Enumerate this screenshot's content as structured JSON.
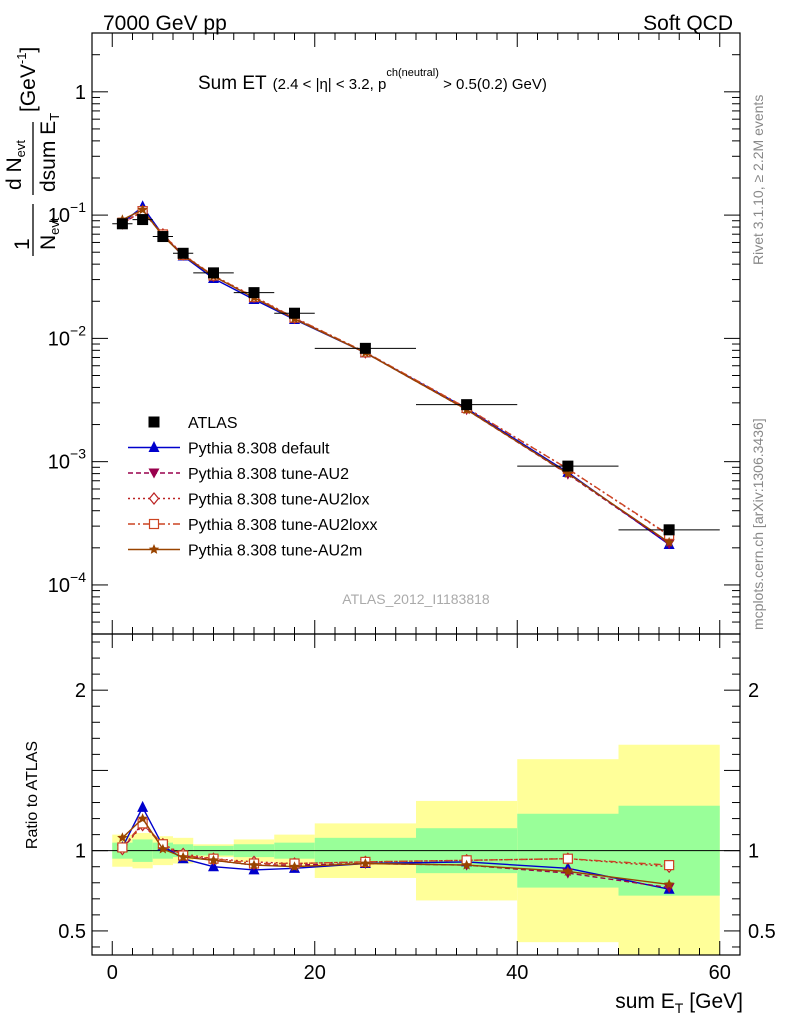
{
  "header": {
    "left": "7000 GeV pp",
    "right": "Soft QCD"
  },
  "side_labels": {
    "top": "Rivet 3.1.10, ≥ 2.2M events",
    "bottom": "mcplots.cern.ch [arXiv:1306.3436]"
  },
  "plot_title": {
    "main": "Sum ET",
    "cond_a": "(2.4 < |η| < 3.2, p",
    "cond_sup": "ch(neutral)",
    "cond_b": " > 0.5(0.2) GeV)"
  },
  "y_label": {
    "one": "1",
    "n": "N",
    "n_sub": "evt",
    "dn": "d N",
    "dn_sub": "evt",
    "dsum": "dsum E",
    "dsum_sub": "T",
    "unit": "[GeV",
    "unit_sup": "-1",
    "unit_close": "]"
  },
  "ratio_ylabel": "Ratio to ATLAS",
  "x_label": {
    "text": "sum E",
    "sub": "T",
    "unit": "[GeV]"
  },
  "watermark": "ATLAS_2012_I1183818",
  "chart_data": {
    "type": "scatter",
    "x_range": [
      -2,
      62
    ],
    "x_ticks": [
      0,
      20,
      40,
      60
    ],
    "main_panel": {
      "yscale": "log",
      "ylim": [
        4e-05,
        3
      ],
      "y_ticks": [
        {
          "value": 1,
          "base": "1",
          "exp": ""
        },
        {
          "value": 0.1,
          "base": "10",
          "exp": "−1"
        },
        {
          "value": 0.01,
          "base": "10",
          "exp": "−2"
        },
        {
          "value": 0.001,
          "base": "10",
          "exp": "−3"
        },
        {
          "value": 0.0001,
          "base": "10",
          "exp": "−4"
        }
      ]
    },
    "ratio_panel": {
      "ylim": [
        0.35,
        2.35
      ],
      "y_ticks": [
        {
          "value": 2,
          "label": "2"
        },
        {
          "value": 1,
          "label": "1"
        },
        {
          "value": 0.5,
          "label": "0.5"
        }
      ]
    },
    "bins": [
      {
        "lo": 0,
        "hi": 2,
        "x": 1,
        "data": 0.085,
        "stat": 0.05,
        "tot": 0.1
      },
      {
        "lo": 2,
        "hi": 4,
        "x": 3,
        "data": 0.092,
        "stat": 0.07,
        "tot": 0.11
      },
      {
        "lo": 4,
        "hi": 6,
        "x": 5,
        "data": 0.067,
        "stat": 0.05,
        "tot": 0.09
      },
      {
        "lo": 6,
        "hi": 8,
        "x": 7,
        "data": 0.049,
        "stat": 0.04,
        "tot": 0.08
      },
      {
        "lo": 8,
        "hi": 12,
        "x": 10,
        "data": 0.034,
        "stat": 0.03,
        "tot": 0.04
      },
      {
        "lo": 12,
        "hi": 16,
        "x": 14,
        "data": 0.0235,
        "stat": 0.04,
        "tot": 0.07
      },
      {
        "lo": 16,
        "hi": 20,
        "x": 18,
        "data": 0.016,
        "stat": 0.05,
        "tot": 0.1
      },
      {
        "lo": 20,
        "hi": 30,
        "x": 25,
        "data": 0.0083,
        "stat": 0.08,
        "tot": 0.17
      },
      {
        "lo": 30,
        "hi": 40,
        "x": 35,
        "data": 0.0029,
        "stat": 0.14,
        "tot": 0.31
      },
      {
        "lo": 40,
        "hi": 50,
        "x": 45,
        "data": 0.00092,
        "stat": 0.23,
        "tot": 0.57
      },
      {
        "lo": 50,
        "hi": 60,
        "x": 55,
        "data": 0.00028,
        "stat": 0.28,
        "tot": 0.66
      }
    ],
    "data_series": {
      "name": "ATLAS",
      "color": "#000000",
      "marker": "square"
    },
    "series": [
      {
        "name": "Pythia 8.308 default",
        "color": "#0000cc",
        "marker": "triangle-up",
        "dash": "",
        "ratio": [
          1.02,
          1.27,
          1.03,
          0.95,
          0.9,
          0.88,
          0.89,
          0.92,
          0.93,
          0.89,
          0.76
        ]
      },
      {
        "name": "Pythia 8.308 tune-AU2",
        "color": "#99004d",
        "marker": "triangle-down",
        "dash": "5,3",
        "ratio": [
          1.01,
          1.17,
          1.03,
          0.97,
          0.94,
          0.91,
          0.91,
          0.92,
          0.91,
          0.86,
          0.77
        ]
      },
      {
        "name": "Pythia 8.308 tune-AU2lox",
        "color": "#bb2222",
        "marker": "diamond-open",
        "dash": "2,3",
        "ratio": [
          1.01,
          1.16,
          1.04,
          0.98,
          0.95,
          0.93,
          0.92,
          0.93,
          0.94,
          0.95,
          0.9
        ]
      },
      {
        "name": "Pythia 8.308 tune-AU2loxx",
        "color": "#cc4422",
        "marker": "square-open",
        "dash": "7,3,2,3",
        "ratio": [
          1.02,
          1.17,
          1.04,
          0.97,
          0.95,
          0.92,
          0.92,
          0.93,
          0.94,
          0.95,
          0.91
        ]
      },
      {
        "name": "Pythia 8.308 tune-AU2m",
        "color": "#994400",
        "marker": "star",
        "dash": "",
        "ratio": [
          1.08,
          1.2,
          1.01,
          0.96,
          0.94,
          0.91,
          0.9,
          0.92,
          0.91,
          0.87,
          0.79
        ]
      }
    ],
    "colors": {
      "stat_band": "#99ff99",
      "tot_band": "#ffff99"
    },
    "legend_position": "lower-left"
  }
}
